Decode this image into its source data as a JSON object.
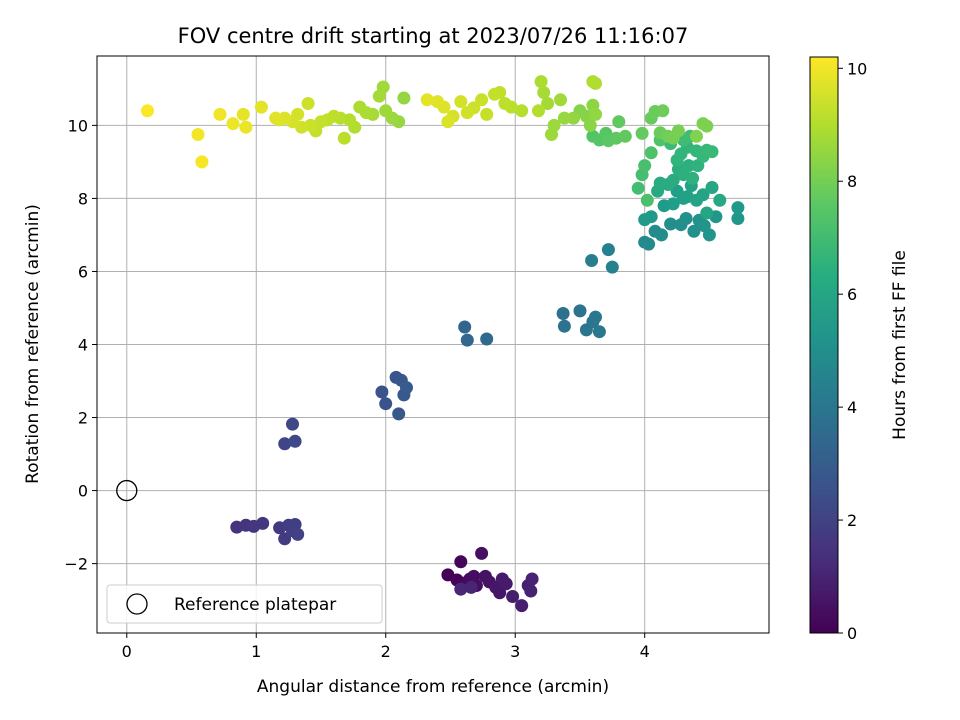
{
  "chart_data": {
    "type": "scatter",
    "title": "FOV centre drift starting at 2023/07/26 11:16:07",
    "xlabel": "Angular distance from reference (arcmin)",
    "ylabel": "Rotation from reference (arcmin)",
    "xlim": [
      -0.23,
      4.96
    ],
    "ylim": [
      -3.9,
      11.9
    ],
    "x_ticks": [
      0,
      1,
      2,
      3,
      4
    ],
    "x_tick_labels": [
      "0",
      "1",
      "2",
      "3",
      "4"
    ],
    "y_ticks": [
      -2,
      0,
      2,
      4,
      6,
      8,
      10
    ],
    "y_tick_labels": [
      "−2",
      "0",
      "2",
      "4",
      "6",
      "8",
      "10"
    ],
    "grid": true,
    "legend": {
      "placement": "lower-left",
      "entries": [
        "Reference platepar"
      ]
    },
    "reference_point": {
      "x": 0,
      "y": 0,
      "label": "Reference platepar"
    },
    "colorbar": {
      "label": "Hours from first FF file",
      "colormap": "viridis",
      "range": [
        0,
        10.2
      ],
      "ticks": [
        0,
        2,
        4,
        6,
        8,
        10
      ],
      "tick_labels": [
        "0",
        "2",
        "4",
        "6",
        "8",
        "10"
      ]
    },
    "series_columns": [
      "x_arcmin",
      "y_arcmin",
      "hours"
    ],
    "points": [
      [
        2.48,
        -2.31,
        0.05
      ],
      [
        2.55,
        -2.45,
        0.1
      ],
      [
        2.58,
        -1.95,
        0.15
      ],
      [
        2.6,
        -2.6,
        0.2
      ],
      [
        2.63,
        -2.5,
        0.25
      ],
      [
        2.65,
        -2.42,
        0.3
      ],
      [
        2.68,
        -2.35,
        0.35
      ],
      [
        2.7,
        -2.6,
        0.4
      ],
      [
        2.74,
        -1.72,
        0.45
      ],
      [
        2.77,
        -2.35,
        0.5
      ],
      [
        2.8,
        -2.5,
        0.55
      ],
      [
        2.85,
        -2.65,
        0.6
      ],
      [
        2.88,
        -2.8,
        0.65
      ],
      [
        2.9,
        -2.42,
        0.7
      ],
      [
        2.93,
        -2.55,
        0.75
      ],
      [
        2.98,
        -2.9,
        0.8
      ],
      [
        3.05,
        -3.15,
        0.85
      ],
      [
        3.1,
        -2.6,
        0.9
      ],
      [
        3.12,
        -2.75,
        0.95
      ],
      [
        3.13,
        -2.42,
        1.0
      ],
      [
        2.66,
        -2.65,
        1.05
      ],
      [
        2.58,
        -2.7,
        1.1
      ],
      [
        0.85,
        -1.0,
        1.5
      ],
      [
        0.92,
        -0.95,
        1.55
      ],
      [
        0.98,
        -0.98,
        1.6
      ],
      [
        1.05,
        -0.9,
        1.65
      ],
      [
        1.18,
        -1.02,
        1.7
      ],
      [
        1.22,
        -1.32,
        1.75
      ],
      [
        1.25,
        -0.95,
        1.8
      ],
      [
        1.28,
        -1.1,
        1.85
      ],
      [
        1.3,
        -0.93,
        1.9
      ],
      [
        1.32,
        -1.2,
        1.95
      ],
      [
        1.22,
        1.28,
        2.1
      ],
      [
        1.28,
        1.82,
        2.15
      ],
      [
        1.3,
        1.35,
        2.2
      ],
      [
        1.97,
        2.7,
        2.6
      ],
      [
        2.0,
        2.38,
        2.65
      ],
      [
        2.08,
        3.1,
        2.7
      ],
      [
        2.1,
        2.1,
        2.75
      ],
      [
        2.12,
        3.02,
        2.8
      ],
      [
        2.14,
        2.62,
        2.85
      ],
      [
        2.16,
        2.82,
        2.9
      ],
      [
        2.61,
        4.48,
        3.3
      ],
      [
        2.63,
        4.12,
        3.35
      ],
      [
        2.78,
        4.15,
        3.4
      ],
      [
        3.37,
        4.85,
        3.8
      ],
      [
        3.38,
        4.5,
        3.85
      ],
      [
        3.5,
        4.92,
        3.9
      ],
      [
        3.55,
        4.4,
        3.95
      ],
      [
        3.6,
        4.62,
        4.0
      ],
      [
        3.62,
        4.75,
        4.05
      ],
      [
        3.65,
        4.35,
        4.1
      ],
      [
        3.59,
        6.3,
        4.4
      ],
      [
        3.72,
        6.6,
        4.45
      ],
      [
        3.75,
        6.12,
        4.5
      ],
      [
        4.0,
        6.8,
        4.8
      ],
      [
        4.03,
        6.75,
        4.85
      ],
      [
        4.08,
        7.1,
        4.9
      ],
      [
        4.13,
        7.0,
        4.95
      ],
      [
        4.2,
        7.3,
        5.0
      ],
      [
        4.28,
        7.28,
        5.05
      ],
      [
        4.32,
        7.45,
        5.1
      ],
      [
        4.38,
        7.1,
        5.15
      ],
      [
        4.42,
        7.4,
        5.2
      ],
      [
        4.46,
        7.25,
        5.25
      ],
      [
        4.5,
        7.0,
        5.3
      ],
      [
        4.55,
        7.5,
        5.35
      ],
      [
        4.72,
        7.45,
        5.4
      ],
      [
        4.72,
        7.75,
        5.45
      ],
      [
        4.05,
        7.5,
        5.5
      ],
      [
        4.0,
        7.42,
        5.55
      ],
      [
        4.15,
        7.8,
        5.6
      ],
      [
        4.22,
        7.85,
        5.65
      ],
      [
        4.25,
        8.2,
        5.7
      ],
      [
        4.3,
        8.0,
        5.75
      ],
      [
        4.33,
        8.05,
        5.8
      ],
      [
        4.36,
        8.35,
        5.85
      ],
      [
        4.4,
        7.95,
        5.9
      ],
      [
        4.45,
        8.1,
        5.95
      ],
      [
        4.48,
        7.6,
        6.0
      ],
      [
        4.52,
        8.3,
        6.05
      ],
      [
        4.58,
        7.95,
        6.1
      ],
      [
        4.1,
        8.2,
        6.15
      ],
      [
        4.12,
        8.42,
        6.2
      ],
      [
        4.18,
        8.38,
        6.25
      ],
      [
        4.22,
        8.5,
        6.3
      ],
      [
        4.26,
        8.8,
        6.35
      ],
      [
        4.3,
        8.65,
        6.4
      ],
      [
        4.34,
        8.9,
        6.45
      ],
      [
        4.37,
        8.55,
        6.5
      ],
      [
        4.41,
        8.9,
        6.55
      ],
      [
        4.25,
        9.05,
        6.6
      ],
      [
        4.28,
        9.22,
        6.65
      ],
      [
        4.33,
        9.4,
        6.7
      ],
      [
        4.4,
        9.3,
        6.75
      ],
      [
        4.45,
        9.15,
        6.8
      ],
      [
        4.48,
        9.32,
        6.85
      ],
      [
        4.52,
        9.28,
        6.9
      ],
      [
        4.2,
        9.5,
        6.95
      ],
      [
        4.3,
        9.6,
        7.0
      ],
      [
        4.35,
        9.7,
        7.05
      ],
      [
        3.95,
        8.28,
        7.1
      ],
      [
        3.98,
        8.65,
        7.15
      ],
      [
        4.0,
        8.9,
        7.2
      ],
      [
        4.02,
        7.95,
        7.25
      ],
      [
        4.05,
        9.25,
        7.3
      ],
      [
        4.12,
        9.6,
        7.35
      ],
      [
        3.6,
        9.7,
        7.4
      ],
      [
        3.65,
        9.6,
        7.45
      ],
      [
        3.7,
        9.78,
        7.5
      ],
      [
        3.72,
        9.58,
        7.55
      ],
      [
        3.78,
        9.65,
        7.6
      ],
      [
        3.8,
        10.1,
        7.65
      ],
      [
        3.85,
        9.7,
        7.7
      ],
      [
        3.98,
        9.78,
        7.75
      ],
      [
        4.05,
        10.2,
        7.8
      ],
      [
        4.08,
        10.38,
        7.85
      ],
      [
        4.12,
        9.8,
        7.9
      ],
      [
        4.14,
        10.4,
        7.95
      ],
      [
        4.18,
        9.7,
        8.0
      ],
      [
        4.22,
        9.65,
        8.05
      ],
      [
        4.26,
        9.85,
        8.1
      ],
      [
        4.45,
        10.05,
        8.15
      ],
      [
        4.48,
        9.98,
        8.2
      ],
      [
        4.4,
        9.7,
        8.25
      ],
      [
        3.5,
        10.4,
        8.3
      ],
      [
        3.55,
        10.25,
        8.35
      ],
      [
        3.58,
        10.0,
        8.4
      ],
      [
        3.6,
        10.55,
        8.45
      ],
      [
        3.62,
        10.3,
        8.5
      ],
      [
        3.45,
        10.2,
        8.55
      ],
      [
        3.38,
        10.2,
        8.6
      ],
      [
        3.3,
        10.0,
        8.65
      ],
      [
        3.28,
        9.75,
        8.7
      ],
      [
        3.35,
        10.7,
        8.75
      ],
      [
        3.25,
        10.6,
        8.8
      ],
      [
        3.22,
        10.9,
        8.85
      ],
      [
        3.2,
        11.2,
        8.9
      ],
      [
        3.6,
        11.2,
        8.95
      ],
      [
        3.62,
        11.15,
        9.0
      ],
      [
        3.18,
        10.4,
        9.05
      ],
      [
        3.05,
        10.4,
        9.1
      ],
      [
        2.97,
        10.5,
        9.15
      ],
      [
        2.92,
        10.6,
        9.2
      ],
      [
        2.88,
        10.9,
        9.25
      ],
      [
        2.84,
        10.85,
        9.3
      ],
      [
        2.78,
        10.3,
        9.35
      ],
      [
        2.74,
        10.7,
        9.4
      ],
      [
        2.68,
        10.48,
        9.45
      ],
      [
        2.63,
        10.35,
        9.5
      ],
      [
        2.58,
        10.65,
        9.55
      ],
      [
        2.52,
        10.25,
        9.6
      ],
      [
        2.48,
        10.1,
        9.65
      ],
      [
        2.45,
        10.5,
        9.7
      ],
      [
        2.4,
        10.65,
        9.75
      ],
      [
        2.32,
        10.7,
        9.8
      ]
    ],
    "points_batch_2": [
      [
        2.14,
        10.75,
        8.55
      ],
      [
        2.1,
        10.1,
        8.6
      ],
      [
        2.05,
        10.2,
        8.65
      ],
      [
        2.0,
        10.4,
        8.7
      ],
      [
        1.98,
        11.05,
        8.75
      ],
      [
        1.95,
        10.8,
        8.8
      ],
      [
        1.9,
        10.3,
        8.85
      ],
      [
        1.85,
        10.35,
        8.9
      ],
      [
        1.8,
        10.5,
        8.95
      ],
      [
        1.76,
        9.95,
        9.0
      ],
      [
        1.72,
        10.15,
        9.05
      ],
      [
        1.65,
        10.2,
        9.1
      ],
      [
        1.68,
        9.65,
        9.15
      ],
      [
        1.6,
        10.25,
        9.2
      ],
      [
        1.55,
        10.15,
        9.25
      ],
      [
        1.5,
        10.1,
        9.3
      ],
      [
        1.46,
        9.85,
        9.35
      ],
      [
        1.42,
        10.0,
        9.4
      ],
      [
        1.4,
        10.6,
        9.45
      ],
      [
        1.35,
        9.95,
        9.5
      ],
      [
        1.32,
        10.3,
        9.55
      ],
      [
        1.28,
        10.1,
        9.6
      ],
      [
        1.22,
        10.2,
        9.65
      ],
      [
        1.18,
        10.15,
        9.7
      ],
      [
        1.15,
        10.2,
        9.75
      ],
      [
        1.04,
        10.5,
        9.8
      ],
      [
        0.9,
        10.3,
        9.85
      ],
      [
        0.92,
        9.95,
        9.9
      ],
      [
        0.82,
        10.05,
        9.95
      ],
      [
        0.72,
        10.3,
        10.0
      ],
      [
        0.55,
        9.75,
        10.05
      ],
      [
        0.58,
        9.0,
        10.1
      ],
      [
        0.16,
        10.4,
        10.15
      ]
    ]
  }
}
